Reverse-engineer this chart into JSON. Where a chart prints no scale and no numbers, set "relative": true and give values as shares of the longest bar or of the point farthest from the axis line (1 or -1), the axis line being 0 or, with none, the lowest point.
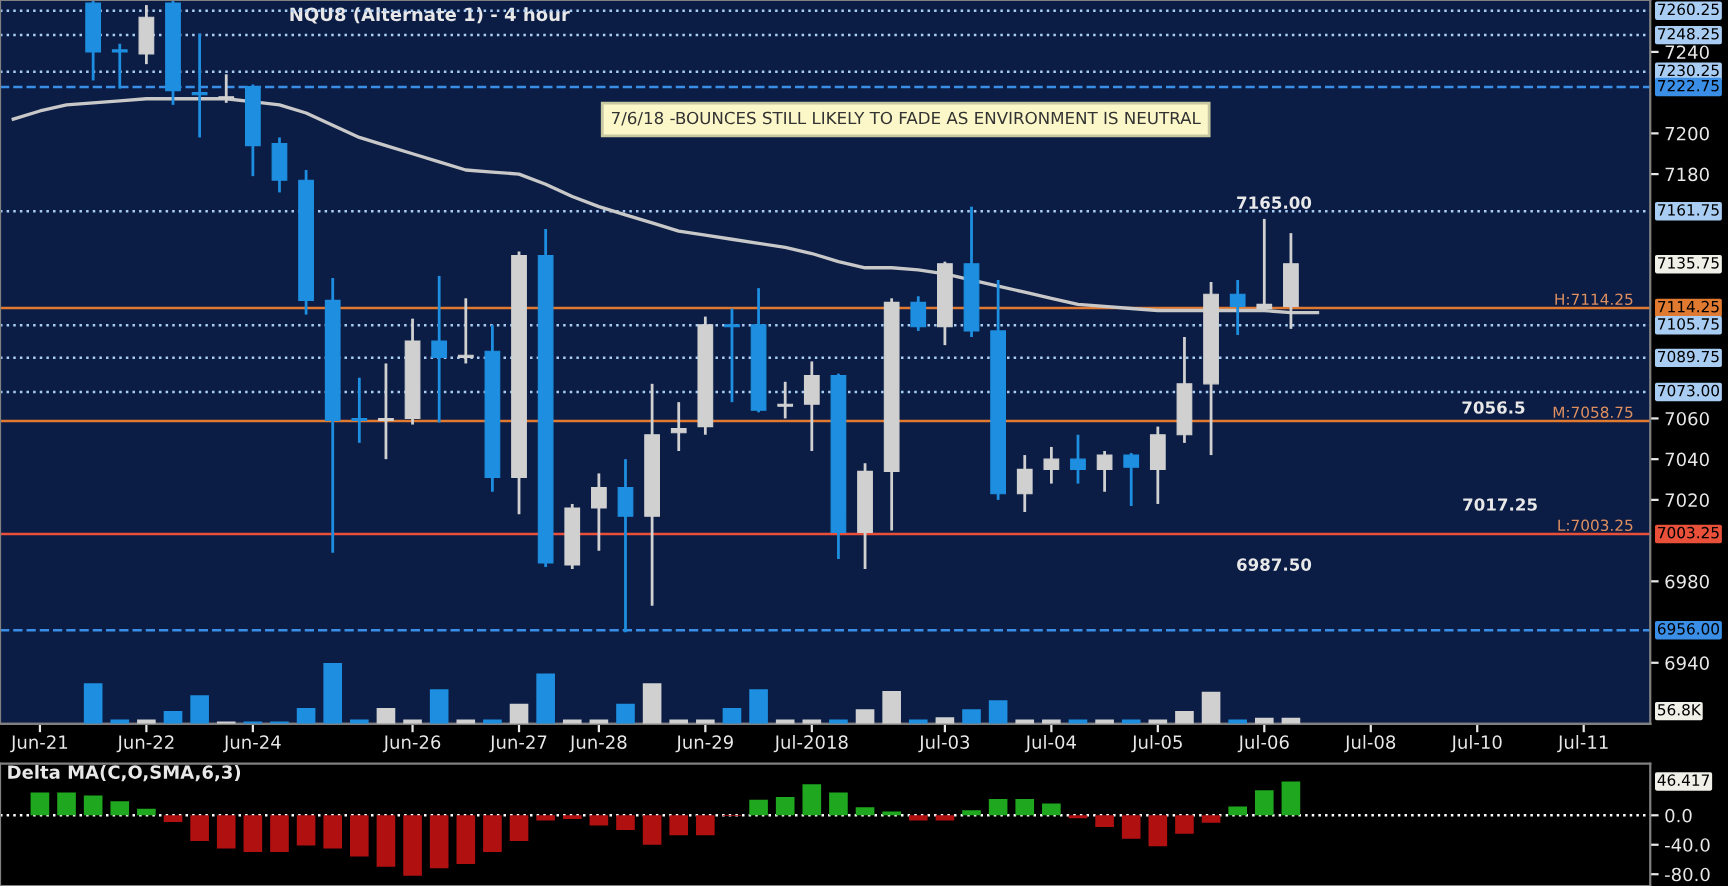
{
  "chart_data": [
    {
      "type": "candlestick",
      "title": "NQU8 (Alternate 1) - 4 hour",
      "categories": [
        null,
        null,
        null,
        null,
        null,
        null,
        null,
        null,
        null,
        null,
        null,
        null,
        null,
        null,
        null,
        null,
        null,
        null,
        null,
        null,
        null,
        null,
        null,
        null,
        null,
        null,
        null,
        null,
        null,
        null,
        null,
        null,
        null,
        null,
        null,
        null,
        null,
        null,
        null,
        null,
        null,
        null,
        null,
        null,
        null,
        null,
        null,
        null,
        null,
        null,
        null,
        null,
        null,
        null,
        null,
        null,
        null,
        null,
        null,
        null,
        null,
        null
      ],
      "ohlc": [
        null,
        null,
        null,
        [
          7264,
          7265,
          7226,
          7240
        ],
        [
          7241,
          7244,
          7222,
          7240
        ],
        [
          7239,
          7263,
          7234,
          7257
        ],
        [
          7264,
          7265,
          7214,
          7221
        ],
        [
          7220,
          7249,
          7198,
          7219
        ],
        [
          7217,
          7229,
          7215,
          7218
        ],
        [
          7223,
          7224,
          7179,
          7194
        ],
        [
          7195,
          7198,
          7171,
          7177
        ],
        [
          7177,
          7182,
          7111,
          7118
        ],
        [
          7118,
          7129,
          6994,
          7059
        ],
        [
          7060,
          7080,
          7048,
          7059
        ],
        [
          7059,
          7087,
          7040,
          7060
        ],
        [
          7060,
          7109,
          7057,
          7098
        ],
        [
          7098,
          7130,
          7058,
          7090
        ],
        [
          7090,
          7119,
          7087,
          7091
        ],
        [
          7093,
          7106,
          7024,
          7031
        ],
        [
          7031,
          7142,
          7013,
          7140
        ],
        [
          7140,
          7153,
          6987,
          6989
        ],
        [
          6988,
          7018,
          6986,
          7016
        ],
        [
          7016,
          7033,
          6995,
          7026
        ],
        [
          7026,
          7040,
          6955,
          7012
        ],
        [
          7012,
          7077,
          6968,
          7052
        ],
        [
          7053,
          7068,
          7044,
          7055
        ],
        [
          7056,
          7110,
          7052,
          7106
        ],
        [
          7106,
          7114,
          7068,
          7105
        ],
        [
          7106,
          7124,
          7063,
          7064
        ],
        [
          7066,
          7078,
          7060,
          7067
        ],
        [
          7067,
          7088,
          7044,
          7081
        ],
        [
          7081,
          7082,
          6991,
          7004
        ],
        [
          7004,
          7038,
          6986,
          7034
        ],
        [
          7034,
          7119,
          7005,
          7117
        ],
        [
          7117,
          7120,
          7103,
          7105
        ],
        [
          7105,
          7137,
          7096,
          7136
        ],
        [
          7136,
          7164,
          7100,
          7103
        ],
        [
          7103,
          7128,
          7020,
          7023
        ],
        [
          7023,
          7042,
          7014,
          7035
        ],
        [
          7035,
          7046,
          7028,
          7040
        ],
        [
          7040,
          7052,
          7028,
          7035
        ],
        [
          7035,
          7044,
          7024,
          7042
        ],
        [
          7042,
          7043,
          7017,
          7036
        ],
        [
          7035,
          7056,
          7018,
          7052
        ],
        [
          7052,
          7100,
          7048,
          7077
        ],
        [
          7077,
          7127,
          7042,
          7121
        ],
        [
          7121,
          7128,
          7101,
          7115
        ],
        [
          7114,
          7158,
          7113,
          7116
        ],
        [
          7115,
          7151,
          7104,
          7136
        ],
        null,
        null,
        null,
        null,
        null,
        null,
        null,
        null,
        null,
        null,
        null,
        null,
        null
      ],
      "colors": [
        null,
        null,
        null,
        "#1e8fe0",
        "#1e8fe0",
        "#d0d0d0",
        "#1e8fe0",
        "#1e8fe0",
        "#d0d0d0",
        "#1e8fe0",
        "#1e8fe0",
        "#1e8fe0",
        "#1e8fe0",
        "#1e8fe0",
        "#d0d0d0",
        "#d0d0d0",
        "#1e8fe0",
        "#d0d0d0",
        "#1e8fe0",
        "#d0d0d0",
        "#1e8fe0",
        "#d0d0d0",
        "#d0d0d0",
        "#1e8fe0",
        "#d0d0d0",
        "#d0d0d0",
        "#d0d0d0",
        "#1e8fe0",
        "#1e8fe0",
        "#d0d0d0",
        "#d0d0d0",
        "#1e8fe0",
        "#d0d0d0",
        "#d0d0d0",
        "#1e8fe0",
        "#d0d0d0",
        "#1e8fe0",
        "#1e8fe0",
        "#d0d0d0",
        "#d0d0d0",
        "#1e8fe0",
        "#d0d0d0",
        "#1e8fe0",
        "#d0d0d0",
        "#d0d0d0",
        "#d0d0d0",
        "#1e8fe0",
        "#d0d0d0",
        "#d0d0d0",
        null,
        null,
        null,
        null,
        null,
        null,
        null,
        null,
        null,
        null,
        null,
        null,
        null
      ],
      "series": [
        {
          "type": "line",
          "color": "#c8c8c8",
          "values": [
            7207,
            7211,
            7214,
            7215,
            7216,
            7217,
            7217,
            7217,
            7217,
            null,
            7214,
            7210,
            7204,
            7198,
            7194,
            7190,
            7186,
            7182,
            7181,
            7180,
            7175,
            7169,
            7164,
            7160,
            7156,
            7152,
            7150,
            7148,
            7146,
            7144,
            7141,
            7137,
            7134,
            7134,
            7133,
            7131,
            null,
            7125,
            7122,
            7119,
            7116,
            7115,
            7114,
            7113,
            7113,
            7113,
            7113,
            7113,
            7112,
            7112,
            null,
            null,
            null,
            null,
            null,
            null,
            null,
            null,
            null,
            null,
            null,
            null
          ]
        }
      ],
      "ylim": [
        6910,
        7265.5
      ],
      "yticks": [
        6940,
        6980,
        7020,
        7040,
        7060,
        7180,
        7200,
        7240
      ],
      "tick_labels": "y",
      "ref_lines": [
        {
          "axis": "y",
          "value": 7260.25,
          "label": "7260.25",
          "color": "#a9cdf2",
          "line_style": "dotted"
        },
        {
          "axis": "y",
          "value": 7248.25,
          "label": "7248.25",
          "color": "#a9cdf2",
          "line_style": "dotted"
        },
        {
          "axis": "y",
          "value": 7230.25,
          "label": "7230.25",
          "color": "#a9cdf2",
          "line_style": "dotted"
        },
        {
          "axis": "y",
          "value": 7222.75,
          "label": "7222.75",
          "color": "#3a8ee6",
          "line_style": "dashed"
        },
        {
          "axis": "y",
          "value": 7161.75,
          "label": "7161.75",
          "color": "#a9cdf2",
          "line_style": "dotted"
        },
        {
          "axis": "y",
          "value": 7114.25,
          "label": "7114.25",
          "color": "#e07a30",
          "line_style": "solid"
        },
        {
          "axis": "y",
          "value": 7105.75,
          "label": "7105.75",
          "color": "#a9cdf2",
          "line_style": "dotted"
        },
        {
          "axis": "y",
          "value": 7089.75,
          "label": "7089.75",
          "color": "#a9cdf2",
          "line_style": "dotted"
        },
        {
          "axis": "y",
          "value": 7073.0,
          "label": "7073.00",
          "color": "#a9cdf2",
          "line_style": "dotted"
        },
        {
          "axis": "y",
          "value": 7058.75,
          "color": "#e07a30",
          "line_style": "solid"
        },
        {
          "axis": "y",
          "value": 7003.25,
          "label": "7003.25",
          "color": "#e8503a",
          "line_style": "solid"
        },
        {
          "axis": "y",
          "value": 6956.0,
          "label": "6956.00",
          "color": "#3a8ee6",
          "line_style": "dashed"
        }
      ],
      "annotations": [
        "7/6/18 -BOUNCES STILL LIKELY TO FADE AS ENVIRONMENT IS NEUTRAL",
        "7165.00",
        "7056.5",
        "7017.25",
        "6987.50",
        "7135.75",
        {
          "text": "H:7114.25",
          "y": 7114.25
        },
        {
          "text": "M:7058.75",
          "y": 7058.75
        },
        {
          "text": "L:7003.25",
          "y": 7003.25
        }
      ]
    },
    {
      "type": "bar",
      "relative": true,
      "categories": [
        null,
        "Jun-21",
        null,
        null,
        null,
        "Jun-22",
        null,
        null,
        null,
        "Jun-24",
        null,
        null,
        null,
        null,
        null,
        "Jun-26",
        null,
        null,
        null,
        "Jun-27",
        null,
        null,
        "Jun-28",
        null,
        null,
        null,
        "Jun-29",
        null,
        null,
        null,
        "Jul-2018",
        null,
        null,
        null,
        null,
        "Jul-03",
        null,
        null,
        null,
        "Jul-04",
        null,
        null,
        null,
        "Jul-05",
        null,
        null,
        null,
        "Jul-06",
        null,
        null,
        null,
        "Jul-08",
        null,
        null,
        null,
        "Jul-10",
        null,
        null,
        null,
        "Jul-11",
        null,
        null
      ],
      "values": [
        null,
        null,
        null,
        0.67,
        0.07,
        0.07,
        0.21,
        0.47,
        0.04,
        0.04,
        0.04,
        0.26,
        1,
        0.07,
        0.26,
        0.07,
        0.57,
        0.07,
        0.07,
        0.33,
        0.83,
        0.07,
        0.07,
        0.33,
        0.67,
        0.07,
        0.07,
        0.26,
        0.57,
        0.07,
        0.07,
        0.07,
        0.24,
        0.54,
        0.07,
        0.11,
        0.24,
        0.39,
        0.07,
        0.07,
        0.07,
        0.07,
        0.07,
        0.07,
        0.21,
        0.53,
        0.07,
        0.1,
        0.1,
        null,
        null,
        null,
        null,
        null,
        null,
        null,
        null,
        null,
        null,
        null,
        null,
        null
      ],
      "colors": [
        null,
        null,
        null,
        "#1e8fe0",
        "#1e8fe0",
        "#d0d0d0",
        "#1e8fe0",
        "#1e8fe0",
        "#d0d0d0",
        "#1e8fe0",
        "#1e8fe0",
        "#1e8fe0",
        "#1e8fe0",
        "#1e8fe0",
        "#d0d0d0",
        "#d0d0d0",
        "#1e8fe0",
        "#d0d0d0",
        "#1e8fe0",
        "#d0d0d0",
        "#1e8fe0",
        "#d0d0d0",
        "#d0d0d0",
        "#1e8fe0",
        "#d0d0d0",
        "#d0d0d0",
        "#d0d0d0",
        "#1e8fe0",
        "#1e8fe0",
        "#d0d0d0",
        "#d0d0d0",
        "#1e8fe0",
        "#d0d0d0",
        "#d0d0d0",
        "#1e8fe0",
        "#d0d0d0",
        "#1e8fe0",
        "#1e8fe0",
        "#d0d0d0",
        "#d0d0d0",
        "#1e8fe0",
        "#d0d0d0",
        "#1e8fe0",
        "#d0d0d0",
        "#d0d0d0",
        "#d0d0d0",
        "#1e8fe0",
        "#d0d0d0",
        "#d0d0d0",
        null,
        null,
        null,
        null,
        null,
        null,
        null,
        null,
        null,
        null,
        null,
        null,
        null
      ],
      "tick_labels": "x",
      "annotations": [
        "56.8K"
      ]
    },
    {
      "type": "bar",
      "title": "Delta MA(C,O,SMA,6,3)",
      "categories": [
        null,
        null,
        null,
        null,
        null,
        null,
        null,
        null,
        null,
        null,
        null,
        null,
        null,
        null,
        null,
        null,
        null,
        null,
        null,
        null,
        null,
        null,
        null,
        null,
        null,
        null,
        null,
        null,
        null,
        null,
        null,
        null,
        null,
        null,
        null,
        null,
        null,
        null,
        null,
        null,
        null,
        null,
        null,
        null,
        null,
        null,
        null,
        null,
        null,
        null,
        null,
        null,
        null,
        null,
        null,
        null,
        null,
        null,
        null,
        null,
        null,
        null
      ],
      "values": [
        null,
        31,
        31,
        27,
        19,
        9,
        -9,
        -35,
        -45,
        -50,
        -50,
        -41,
        -45,
        -56,
        -70,
        -82,
        -72,
        -66,
        -50,
        -35,
        -7,
        -5,
        -14,
        -20,
        -40,
        -27,
        -27,
        -1,
        21,
        25,
        42,
        31,
        11,
        5,
        -7,
        -7,
        7,
        22,
        22,
        16,
        -4,
        -16,
        -32,
        -42,
        -25,
        -10,
        12,
        34,
        46,
        null,
        null,
        null,
        null,
        null,
        null,
        null,
        null,
        null,
        null,
        null,
        null,
        null
      ],
      "colors": [
        null,
        "#1fa81f",
        "#1fa81f",
        "#1fa81f",
        "#1fa81f",
        "#1fa81f",
        "#b01010",
        "#b01010",
        "#b01010",
        "#b01010",
        "#b01010",
        "#b01010",
        "#b01010",
        "#b01010",
        "#b01010",
        "#b01010",
        "#b01010",
        "#b01010",
        "#b01010",
        "#b01010",
        "#b01010",
        "#b01010",
        "#b01010",
        "#b01010",
        "#b01010",
        "#b01010",
        "#b01010",
        "#b01010",
        "#1fa81f",
        "#1fa81f",
        "#1fa81f",
        "#1fa81f",
        "#1fa81f",
        "#1fa81f",
        "#b01010",
        "#b01010",
        "#1fa81f",
        "#1fa81f",
        "#1fa81f",
        "#1fa81f",
        "#b01010",
        "#b01010",
        "#b01010",
        "#b01010",
        "#b01010",
        "#b01010",
        "#1fa81f",
        "#1fa81f",
        "#1fa81f",
        null,
        null,
        null,
        null,
        null,
        null,
        null,
        null,
        null,
        null,
        null,
        null,
        null
      ],
      "ylim": [
        -96,
        70
      ],
      "yticks": [
        {
          "value": 0,
          "label": "0.0"
        },
        {
          "value": -40,
          "label": "-40.0"
        },
        {
          "value": -80,
          "label": "-80.0"
        }
      ],
      "tick_labels": "y",
      "ref_lines": [
        {
          "axis": "y",
          "value": 0,
          "color": "#ffffff",
          "line_style": "dotted"
        }
      ],
      "annotations": [
        "46.417"
      ]
    }
  ]
}
